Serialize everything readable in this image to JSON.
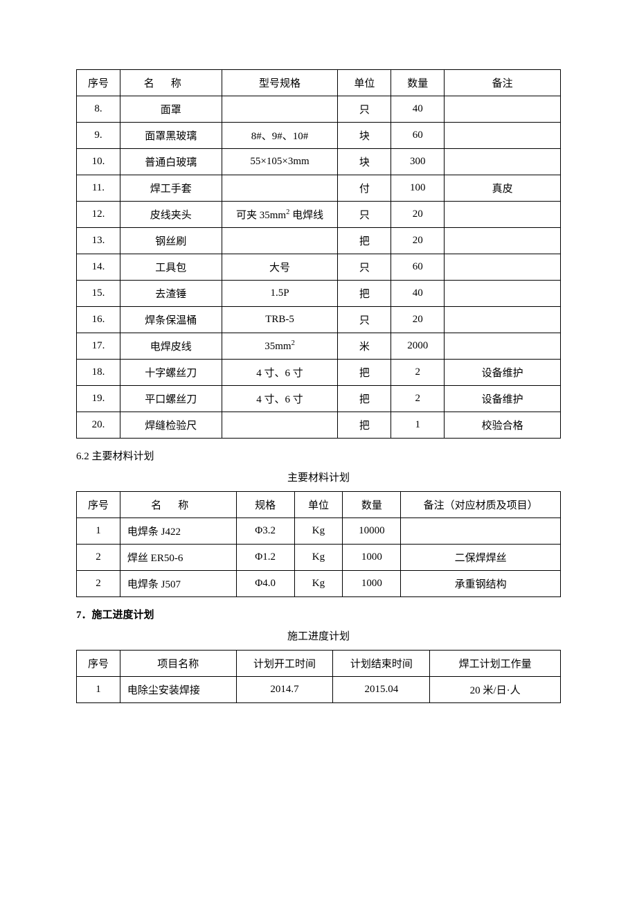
{
  "table1": {
    "columns": [
      "序号",
      "名称",
      "型号规格",
      "单位",
      "数量",
      "备注"
    ],
    "name_header_spacing": true,
    "rows": [
      {
        "seq": "8.",
        "name": "面罩",
        "spec": "",
        "unit": "只",
        "qty": "40",
        "note": ""
      },
      {
        "seq": "9.",
        "name": "面罩黑玻璃",
        "spec": "8#、9#、10#",
        "unit": "块",
        "qty": "60",
        "note": ""
      },
      {
        "seq": "10.",
        "name": "普通白玻璃",
        "spec": "55×105×3mm",
        "unit": "块",
        "qty": "300",
        "note": ""
      },
      {
        "seq": "11.",
        "name": "焊工手套",
        "spec": "",
        "unit": "付",
        "qty": "100",
        "note": "真皮"
      },
      {
        "seq": "12.",
        "name": "皮线夹头",
        "spec_html": "可夹 35mm<sup>2</sup> 电焊线",
        "unit": "只",
        "qty": "20",
        "note": ""
      },
      {
        "seq": "13.",
        "name": "钢丝刷",
        "spec": "",
        "unit": "把",
        "qty": "20",
        "note": ""
      },
      {
        "seq": "14.",
        "name": "工具包",
        "spec": "大号",
        "unit": "只",
        "qty": "60",
        "note": ""
      },
      {
        "seq": "15.",
        "name": "去渣锤",
        "spec": "1.5P",
        "unit": "把",
        "qty": "40",
        "note": ""
      },
      {
        "seq": "16.",
        "name": "焊条保温桶",
        "spec": "TRB-5",
        "unit": "只",
        "qty": "20",
        "note": ""
      },
      {
        "seq": "17.",
        "name": "电焊皮线",
        "spec_html": "35mm<sup>2</sup>",
        "unit": "米",
        "qty": "2000",
        "note": ""
      },
      {
        "seq": "18.",
        "name": "十字螺丝刀",
        "spec": "4 寸、6 寸",
        "unit": "把",
        "qty": "2",
        "note": "设备维护"
      },
      {
        "seq": "19.",
        "name": "平口螺丝刀",
        "spec": "4 寸、6 寸",
        "unit": "把",
        "qty": "2",
        "note": "设备维护"
      },
      {
        "seq": "20.",
        "name": "焊缝检验尺",
        "spec": "",
        "unit": "把",
        "qty": "1",
        "note": "校验合格"
      }
    ]
  },
  "section62": "6.2 主要材料计划",
  "table2_title": "主要材料计划",
  "table2": {
    "columns": [
      "序号",
      "名称",
      "规格",
      "单位",
      "数量",
      "备注（对应材质及项目）"
    ],
    "name_header_spacing": true,
    "rows": [
      {
        "seq": "1",
        "name": "电焊条 J422",
        "spec": "Φ3.2",
        "unit": "Kg",
        "qty": "10000",
        "note": ""
      },
      {
        "seq": "2",
        "name": "焊丝 ER50-6",
        "spec": "Φ1.2",
        "unit": "Kg",
        "qty": "1000",
        "note": "二保焊焊丝"
      },
      {
        "seq": "2",
        "name": "电焊条 J507",
        "spec": "Φ4.0",
        "unit": "Kg",
        "qty": "1000",
        "note": "承重钢结构"
      }
    ]
  },
  "section7": "7．施工进度计划",
  "table3_title": "施工进度计划",
  "table3": {
    "columns": [
      "序号",
      "项目名称",
      "计划开工时间",
      "计划结束时间",
      "焊工计划工作量"
    ],
    "rows": [
      {
        "seq": "1",
        "name": "电除尘安装焊接",
        "c1": "2014.7",
        "c2": "2015.04",
        "c3": "20 米/日·人"
      }
    ]
  }
}
